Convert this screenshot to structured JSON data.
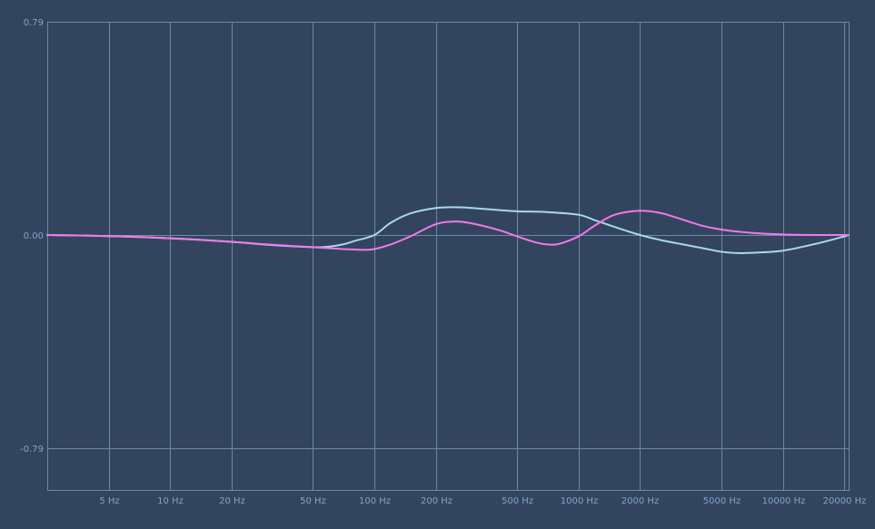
{
  "chart_data": {
    "type": "line",
    "x_scale": "log",
    "xlim": [
      2.5,
      21000
    ],
    "ylim": [
      -0.79,
      0.79
    ],
    "grid": true,
    "x_ticks": [
      {
        "value": 5,
        "label": "5 Hz"
      },
      {
        "value": 10,
        "label": "10 Hz"
      },
      {
        "value": 20,
        "label": "20 Hz"
      },
      {
        "value": 50,
        "label": "50 Hz"
      },
      {
        "value": 100,
        "label": "100 Hz"
      },
      {
        "value": 200,
        "label": "200 Hz"
      },
      {
        "value": 500,
        "label": "500 Hz"
      },
      {
        "value": 1000,
        "label": "1000 Hz"
      },
      {
        "value": 2000,
        "label": "2000 Hz"
      },
      {
        "value": 5000,
        "label": "5000 Hz"
      },
      {
        "value": 10000,
        "label": "10000 Hz"
      },
      {
        "value": 20000,
        "label": "20000 Hz"
      }
    ],
    "y_ticks": [
      {
        "value": 0.79,
        "label": "0.79"
      },
      {
        "value": 0.0,
        "label": "0.00"
      },
      {
        "value": -0.79,
        "label": "-0.79"
      }
    ],
    "series": [
      {
        "color": "#a8d8ea",
        "x": [
          2.5,
          5,
          10,
          20,
          30,
          50,
          60,
          70,
          80,
          100,
          120,
          150,
          200,
          250,
          300,
          400,
          500,
          700,
          1000,
          1200,
          1500,
          2000,
          2500,
          3000,
          4000,
          5000,
          6000,
          7000,
          10000,
          15000,
          20000,
          21000
        ],
        "y": [
          0.0,
          -0.004,
          -0.012,
          -0.025,
          -0.036,
          -0.045,
          -0.043,
          -0.035,
          -0.022,
          0.0,
          0.045,
          0.08,
          0.1,
          0.103,
          0.1,
          0.093,
          0.088,
          0.085,
          0.075,
          0.055,
          0.03,
          0.0,
          -0.018,
          -0.03,
          -0.048,
          -0.062,
          -0.067,
          -0.066,
          -0.058,
          -0.03,
          -0.005,
          0.0
        ]
      },
      {
        "color": "#f07ae8",
        "x": [
          2.5,
          5,
          10,
          20,
          30,
          50,
          70,
          90,
          100,
          120,
          150,
          200,
          250,
          300,
          400,
          500,
          600,
          700,
          800,
          1000,
          1200,
          1500,
          2000,
          2500,
          3000,
          4000,
          5000,
          7000,
          10000,
          15000,
          20000,
          21000
        ],
        "y": [
          0.0,
          -0.004,
          -0.012,
          -0.025,
          -0.035,
          -0.045,
          -0.052,
          -0.055,
          -0.052,
          -0.035,
          -0.005,
          0.04,
          0.05,
          0.043,
          0.02,
          -0.005,
          -0.025,
          -0.035,
          -0.033,
          -0.005,
          0.035,
          0.075,
          0.09,
          0.082,
          0.065,
          0.035,
          0.02,
          0.008,
          0.002,
          0.0,
          0.0,
          0.0
        ]
      }
    ]
  }
}
